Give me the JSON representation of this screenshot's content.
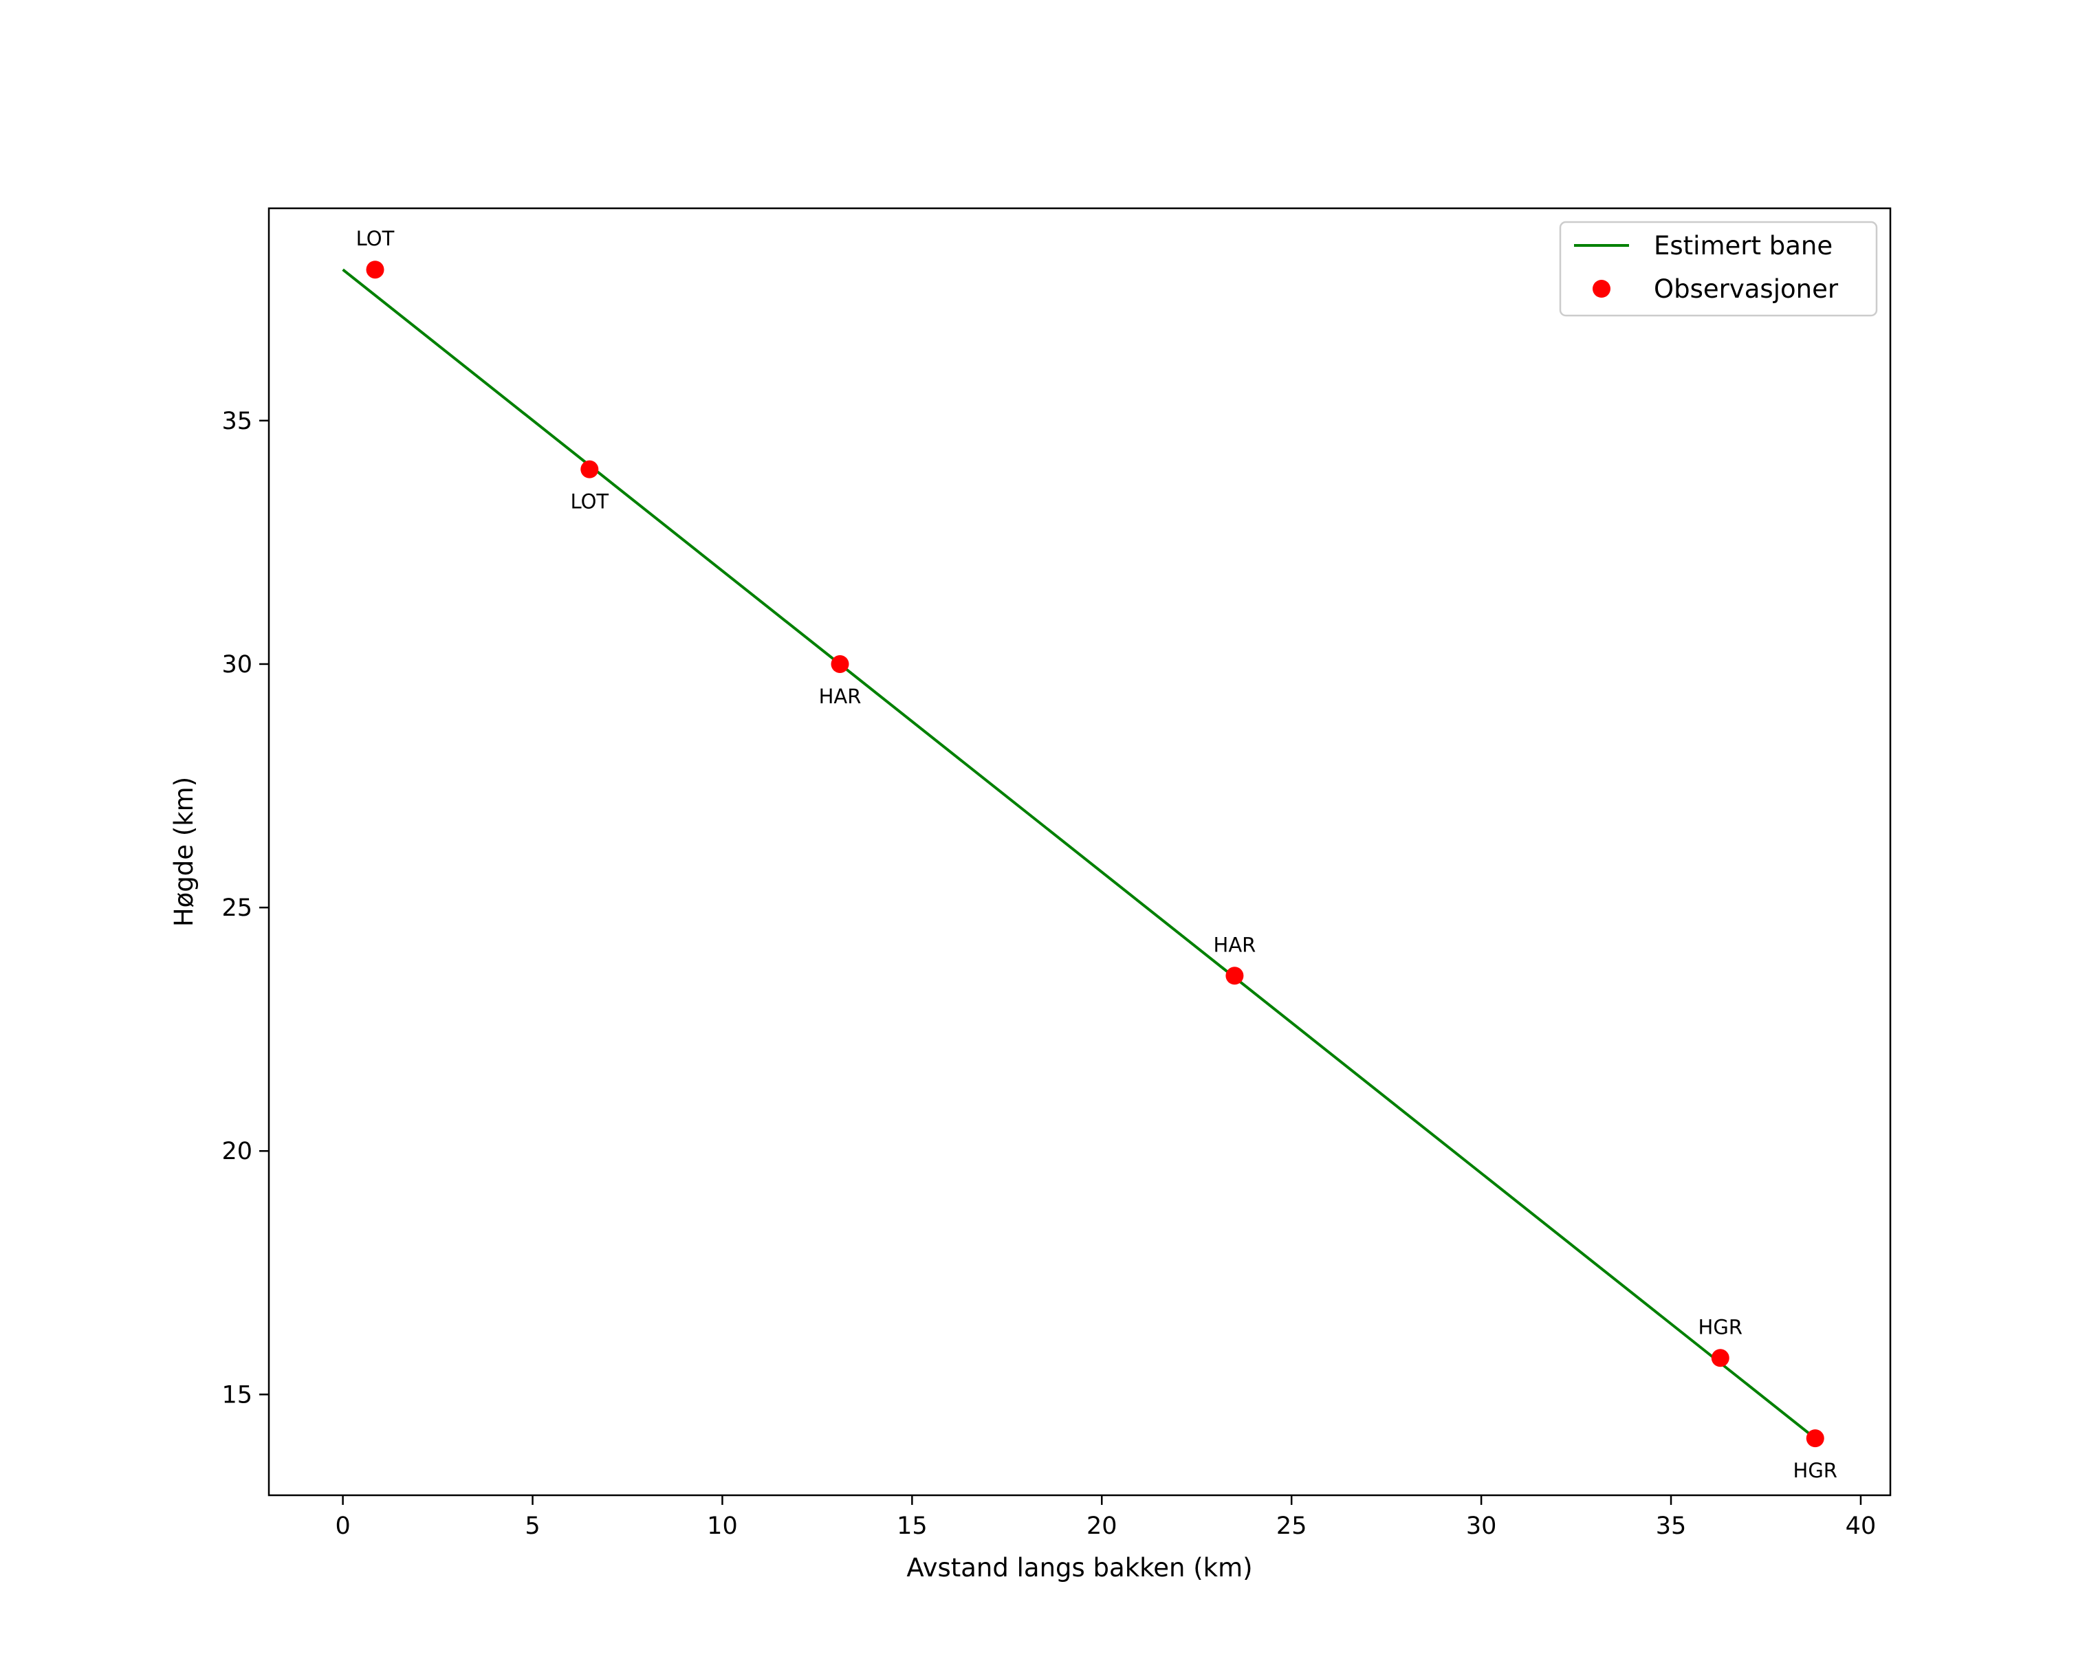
{
  "chart_data": {
    "type": "line",
    "title": "",
    "xlabel": "Avstand langs bakken (km)",
    "ylabel": "Høgde (km)",
    "xlim": [
      -1.95,
      40.78
    ],
    "ylim": [
      12.93,
      39.36
    ],
    "xticks": [
      0,
      5,
      10,
      15,
      20,
      25,
      30,
      35,
      40
    ],
    "yticks": [
      15,
      20,
      25,
      30,
      35
    ],
    "grid": false,
    "legend_position": "upper right",
    "series": [
      {
        "name": "Estimert bane",
        "kind": "line",
        "color": "#008000",
        "x": [
          0.0,
          38.8
        ],
        "y": [
          38.1,
          14.1
        ]
      },
      {
        "name": "Observasjoner",
        "kind": "scatter",
        "color": "#ff0000",
        "x": [
          0.85,
          6.5,
          13.1,
          23.5,
          36.3,
          38.8
        ],
        "y": [
          38.1,
          34.0,
          30.0,
          23.6,
          15.75,
          14.1
        ],
        "labels": [
          "LOT",
          "LOT",
          "HAR",
          "HAR",
          "HGR",
          "HGR"
        ],
        "label_position": [
          "above",
          "below",
          "below",
          "above",
          "above",
          "below"
        ]
      }
    ]
  },
  "legend": {
    "items": [
      {
        "label": "Estimert bane",
        "type": "line",
        "color": "#008000"
      },
      {
        "label": "Observasjoner",
        "type": "marker",
        "color": "#ff0000"
      }
    ]
  }
}
